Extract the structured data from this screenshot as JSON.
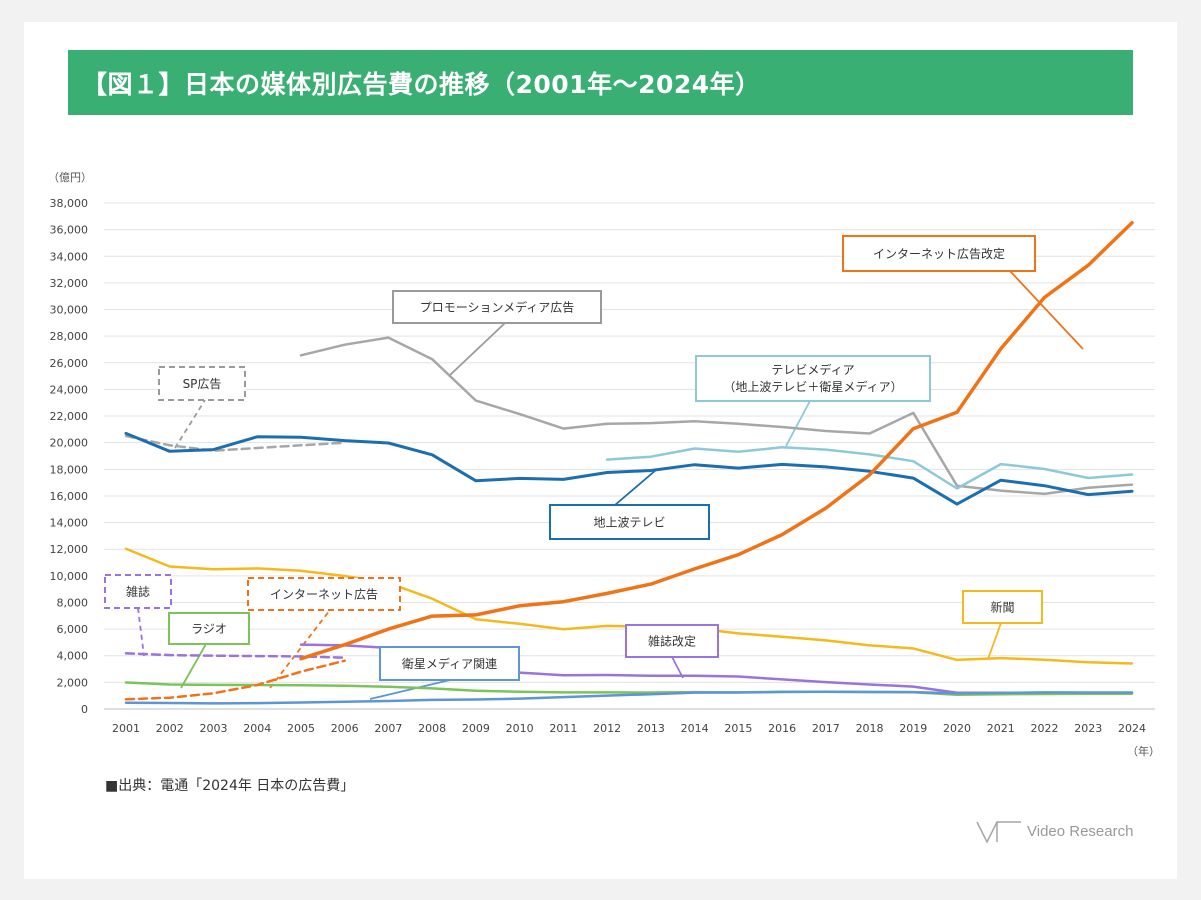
{
  "title": "【図１】日本の媒体別広告費の推移（2001年～2024年）",
  "source": "■出典：電通「2024年 日本の広告費」",
  "brand": {
    "name": "Video Research"
  },
  "chart_data": {
    "type": "line",
    "title": "【図１】日本の媒体別広告費の推移（2001年～2024年）",
    "ylabel": "（億円）",
    "xlabel": "（年）",
    "ylim": [
      0,
      38000
    ],
    "yticks": [
      0,
      2000,
      4000,
      6000,
      8000,
      10000,
      12000,
      14000,
      16000,
      18000,
      20000,
      22000,
      24000,
      26000,
      28000,
      30000,
      32000,
      34000,
      36000,
      38000
    ],
    "ytick_labels": [
      "0",
      "2,000",
      "4,000",
      "6,000",
      "8,000",
      "10,000",
      "12,000",
      "14,000",
      "16,000",
      "18,000",
      "20,000",
      "22,000",
      "24,000",
      "26,000",
      "28,000",
      "30,000",
      "32,000",
      "34,000",
      "36,000",
      "38,000"
    ],
    "x": [
      "2001",
      "2002",
      "2003",
      "2004",
      "2005",
      "2006",
      "2007",
      "2008",
      "2009",
      "2010",
      "2011",
      "2012",
      "2013",
      "2014",
      "2015",
      "2016",
      "2017",
      "2018",
      "2019",
      "2020",
      "2021",
      "2022",
      "2023",
      "2024"
    ],
    "grid": true,
    "series": [
      {
        "name": "地上波テレビ",
        "color": "#1b6fb0",
        "dashed": false,
        "width": 3,
        "values": [
          20700,
          19350,
          19480,
          20440,
          20410,
          20160,
          19980,
          19090,
          17140,
          17320,
          17240,
          17760,
          17910,
          18350,
          18090,
          18370,
          18180,
          17850,
          17340,
          15390,
          17180,
          16770,
          16100,
          16350
        ]
      },
      {
        "name": "テレビメディア（地上波テレビ＋衛星メディア）",
        "color": "#8cc9d9",
        "dashed": false,
        "width": 2.5,
        "values": [
          null,
          null,
          null,
          null,
          null,
          null,
          null,
          null,
          null,
          null,
          null,
          18730,
          18950,
          19560,
          19320,
          19650,
          19480,
          19120,
          18610,
          16560,
          18390,
          18020,
          17350,
          17610
        ]
      },
      {
        "name": "プロモーションメディア広告",
        "color": "#a7a7a7",
        "dashed": false,
        "width": 2.5,
        "values": [
          null,
          null,
          null,
          null,
          26560,
          27360,
          27890,
          26270,
          23160,
          22150,
          21060,
          21420,
          21470,
          21610,
          21420,
          21180,
          20880,
          20690,
          22240,
          16770,
          16400,
          16150,
          16620,
          16850
        ]
      },
      {
        "name": "SP広告",
        "color": "#a7a7a7",
        "dashed": true,
        "width": 2.5,
        "values": [
          20500,
          19800,
          19400,
          19600,
          19800,
          20000,
          null,
          null,
          null,
          null,
          null,
          null,
          null,
          null,
          null,
          null,
          null,
          null,
          null,
          null,
          null,
          null,
          null,
          null
        ]
      },
      {
        "name": "インターネット広告改定",
        "color": "#f07318",
        "dashed": false,
        "width": 3.5,
        "values": [
          null,
          null,
          null,
          null,
          3780,
          4830,
          6000,
          6980,
          7070,
          7750,
          8060,
          8680,
          9380,
          10520,
          11590,
          13100,
          15090,
          17590,
          21050,
          22290,
          27050,
          30910,
          33330,
          36520
        ]
      },
      {
        "name": "インターネット広告",
        "color": "#f07318",
        "dashed": true,
        "width": 2.5,
        "values": [
          730,
          850,
          1180,
          1800,
          2800,
          3630,
          null,
          null,
          null,
          null,
          null,
          null,
          null,
          null,
          null,
          null,
          null,
          null,
          null,
          null,
          null,
          null,
          null,
          null
        ]
      },
      {
        "name": "新聞",
        "color": "#f4b91d",
        "dashed": false,
        "width": 2.5,
        "values": [
          12030,
          10700,
          10500,
          10560,
          10380,
          9990,
          9460,
          8280,
          6740,
          6400,
          5990,
          6240,
          6170,
          6060,
          5680,
          5430,
          5150,
          4780,
          4550,
          3690,
          3820,
          3700,
          3510,
          3420
        ]
      },
      {
        "name": "雑誌改定",
        "color": "#9a74dc",
        "dashed": false,
        "width": 2.5,
        "values": [
          null,
          null,
          null,
          null,
          4840,
          4780,
          4590,
          4080,
          3030,
          2730,
          2540,
          2550,
          2500,
          2500,
          2440,
          2220,
          2020,
          1840,
          1680,
          1220,
          1220,
          1140,
          1160,
          1180
        ]
      },
      {
        "name": "雑誌",
        "color": "#9a74dc",
        "dashed": true,
        "width": 2.5,
        "values": [
          4180,
          4050,
          4000,
          3970,
          3950,
          3850,
          null,
          null,
          null,
          null,
          null,
          null,
          null,
          null,
          null,
          null,
          null,
          null,
          null,
          null,
          null,
          null,
          null,
          null
        ]
      },
      {
        "name": "ラジオ",
        "color": "#7cc35a",
        "dashed": false,
        "width": 2.5,
        "values": [
          1990,
          1840,
          1810,
          1800,
          1780,
          1740,
          1670,
          1550,
          1370,
          1300,
          1250,
          1250,
          1240,
          1270,
          1250,
          1290,
          1290,
          1280,
          1260,
          1070,
          1110,
          1130,
          1140,
          1150
        ]
      },
      {
        "name": "衛星メディア関連",
        "color": "#5d96d6",
        "dashed": false,
        "width": 2.5,
        "values": [
          470,
          450,
          420,
          440,
          490,
          540,
          600,
          680,
          710,
          780,
          890,
          1010,
          1110,
          1230,
          1240,
          1280,
          1300,
          1280,
          1270,
          1170,
          1210,
          1250,
          1240,
          1240
        ]
      }
    ],
    "callouts": [
      {
        "text": "プロモーションメディア広告",
        "color": "#9a9a9a",
        "dashed": false
      },
      {
        "text": "SP広告",
        "color": "#9a9a9a",
        "dashed": true
      },
      {
        "text": "テレビメディア",
        "text2": "（地上波テレビ＋衛星メディア）",
        "color": "#8cc9d9",
        "dashed": false
      },
      {
        "text": "地上波テレビ",
        "color": "#1b6fb0",
        "dashed": false
      },
      {
        "text": "インターネット広告改定",
        "color": "#f07318",
        "dashed": false
      },
      {
        "text": "インターネット広告",
        "color": "#f07318",
        "dashed": true
      },
      {
        "text": "新聞",
        "color": "#f4b91d",
        "dashed": false
      },
      {
        "text": "雑誌改定",
        "color": "#9a74dc",
        "dashed": false
      },
      {
        "text": "雑誌",
        "color": "#9a74dc",
        "dashed": true
      },
      {
        "text": "ラジオ",
        "color": "#7cc35a",
        "dashed": false
      },
      {
        "text": "衛星メディア関連",
        "color": "#5d96d6",
        "dashed": false
      }
    ]
  }
}
